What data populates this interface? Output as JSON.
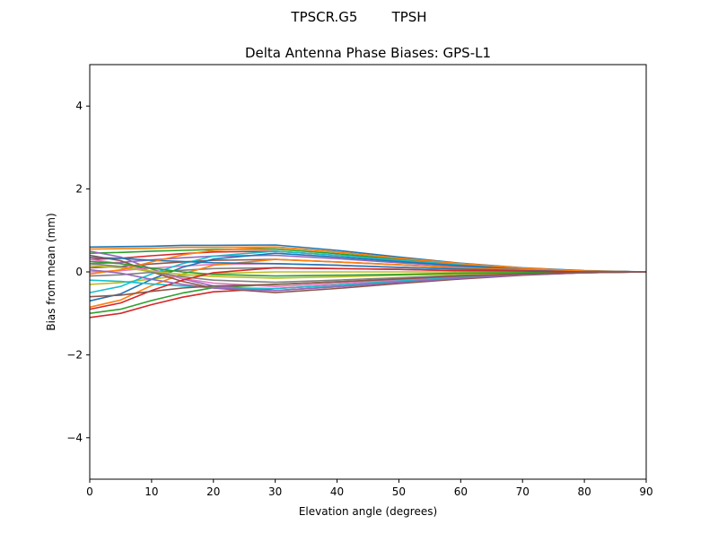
{
  "suptitle": "TPSCR.G5        TPSH",
  "chart_data": {
    "type": "line",
    "title": "Delta Antenna Phase Biases: GPS-L1",
    "xlabel": "Elevation angle (degrees)",
    "ylabel": "Bias from mean (mm)",
    "xlim": [
      0,
      90
    ],
    "ylim": [
      -5,
      5
    ],
    "xticks": [
      0,
      10,
      20,
      30,
      40,
      50,
      60,
      70,
      80,
      90
    ],
    "yticks": [
      -4,
      -2,
      0,
      2,
      4
    ],
    "grid": false,
    "legend": "none",
    "colors": [
      "#1f77b4",
      "#ff7f0e",
      "#2ca02c",
      "#d62728",
      "#9467bd",
      "#8c564b",
      "#e377c2",
      "#7f7f7f",
      "#bcbd22",
      "#17becf"
    ],
    "x": [
      0,
      5,
      10,
      15,
      20,
      30,
      40,
      50,
      60,
      70,
      80,
      90
    ],
    "series": [
      {
        "values": [
          0.6,
          0.61,
          0.62,
          0.64,
          0.64,
          0.65,
          0.52,
          0.36,
          0.21,
          0.1,
          0.03,
          0
        ]
      },
      {
        "values": [
          0.55,
          0.56,
          0.57,
          0.59,
          0.59,
          0.6,
          0.48,
          0.33,
          0.2,
          0.09,
          0.02,
          0
        ]
      },
      {
        "values": [
          0.45,
          0.47,
          0.5,
          0.52,
          0.54,
          0.55,
          0.44,
          0.3,
          0.18,
          0.08,
          0.02,
          0
        ]
      },
      {
        "values": [
          0.3,
          0.33,
          0.39,
          0.44,
          0.48,
          0.5,
          0.4,
          0.28,
          0.17,
          0.08,
          0.02,
          0
        ]
      },
      {
        "values": [
          0.2,
          0.23,
          0.29,
          0.34,
          0.38,
          0.4,
          0.32,
          0.22,
          0.13,
          0.06,
          0.02,
          0
        ]
      },
      {
        "values": [
          0.1,
          0.13,
          0.19,
          0.24,
          0.28,
          0.3,
          0.24,
          0.17,
          0.1,
          0.05,
          0.01,
          0
        ]
      },
      {
        "values": [
          0,
          0.03,
          0.09,
          0.14,
          0.18,
          0.2,
          0.16,
          0.11,
          0.07,
          0.03,
          0.01,
          0
        ]
      },
      {
        "values": [
          -0.1,
          -0.07,
          -0.01,
          0.04,
          0.08,
          0.1,
          0.08,
          0.06,
          0.03,
          0.02,
          0,
          0
        ]
      },
      {
        "values": [
          -0.3,
          -0.26,
          -0.17,
          -0.09,
          -0.04,
          0,
          0,
          0,
          0,
          0,
          0,
          0
        ]
      },
      {
        "values": [
          -0.5,
          -0.35,
          -0.05,
          0.2,
          0.38,
          0.5,
          0.4,
          0.28,
          0.17,
          0.08,
          0.02,
          0
        ]
      },
      {
        "values": [
          -0.7,
          -0.53,
          -0.18,
          0.11,
          0.31,
          0.45,
          0.36,
          0.25,
          0.15,
          0.07,
          0.02,
          0
        ]
      },
      {
        "values": [
          -0.85,
          -0.68,
          -0.33,
          -0.05,
          0.16,
          0.3,
          0.24,
          0.17,
          0.1,
          0.05,
          0.01,
          0
        ]
      },
      {
        "values": [
          -1.0,
          -0.9,
          -0.69,
          -0.51,
          -0.38,
          -0.3,
          -0.24,
          -0.17,
          -0.1,
          -0.05,
          -0.01,
          0
        ]
      },
      {
        "values": [
          -1.1,
          -1.0,
          -0.79,
          -0.61,
          -0.48,
          -0.4,
          -0.32,
          -0.22,
          -0.13,
          -0.06,
          -0.02,
          0
        ]
      },
      {
        "values": [
          0.5,
          0.36,
          0.07,
          -0.17,
          -0.34,
          -0.45,
          -0.36,
          -0.25,
          -0.15,
          -0.07,
          -0.02,
          0
        ]
      },
      {
        "values": [
          0.4,
          0.27,
          0,
          -0.23,
          -0.39,
          -0.5,
          -0.4,
          -0.28,
          -0.17,
          -0.08,
          -0.02,
          0
        ]
      },
      {
        "values": [
          0.3,
          0.2,
          0.01,
          -0.16,
          -0.27,
          -0.35,
          -0.28,
          -0.19,
          -0.12,
          -0.05,
          -0.01,
          0
        ]
      },
      {
        "values": [
          0.2,
          0.13,
          0,
          -0.12,
          -0.2,
          -0.25,
          -0.2,
          -0.14,
          -0.08,
          -0.04,
          -0.01,
          0
        ]
      },
      {
        "values": [
          0.15,
          0.1,
          0.02,
          -0.06,
          -0.11,
          -0.15,
          -0.12,
          -0.08,
          -0.05,
          -0.02,
          -0.01,
          0
        ]
      },
      {
        "values": [
          -0.2,
          -0.23,
          -0.29,
          -0.34,
          -0.38,
          -0.4,
          -0.32,
          -0.22,
          -0.13,
          -0.06,
          -0.02,
          0
        ]
      },
      {
        "values": [
          0.35,
          0.33,
          0.28,
          0.25,
          0.22,
          0.2,
          0.16,
          0.11,
          0.07,
          0.03,
          0.01,
          0
        ]
      },
      {
        "values": [
          -0.05,
          0.05,
          0.24,
          0.41,
          0.52,
          0.6,
          0.48,
          0.33,
          0.2,
          0.09,
          0.02,
          0
        ]
      },
      {
        "values": [
          0.25,
          0.2,
          0.09,
          0,
          -0.06,
          -0.1,
          -0.08,
          -0.06,
          -0.03,
          -0.02,
          0,
          0
        ]
      },
      {
        "values": [
          -0.9,
          -0.75,
          -0.45,
          -0.2,
          -0.02,
          0.1,
          0.08,
          0.06,
          0.03,
          0.02,
          0,
          0
        ]
      },
      {
        "values": [
          0.05,
          -0.03,
          -0.18,
          -0.3,
          -0.39,
          -0.45,
          -0.36,
          -0.25,
          -0.15,
          -0.07,
          -0.02,
          0
        ]
      },
      {
        "values": [
          -0.6,
          -0.56,
          -0.47,
          -0.39,
          -0.34,
          -0.3,
          -0.24,
          -0.17,
          -0.1,
          -0.05,
          -0.01,
          0
        ]
      }
    ]
  }
}
